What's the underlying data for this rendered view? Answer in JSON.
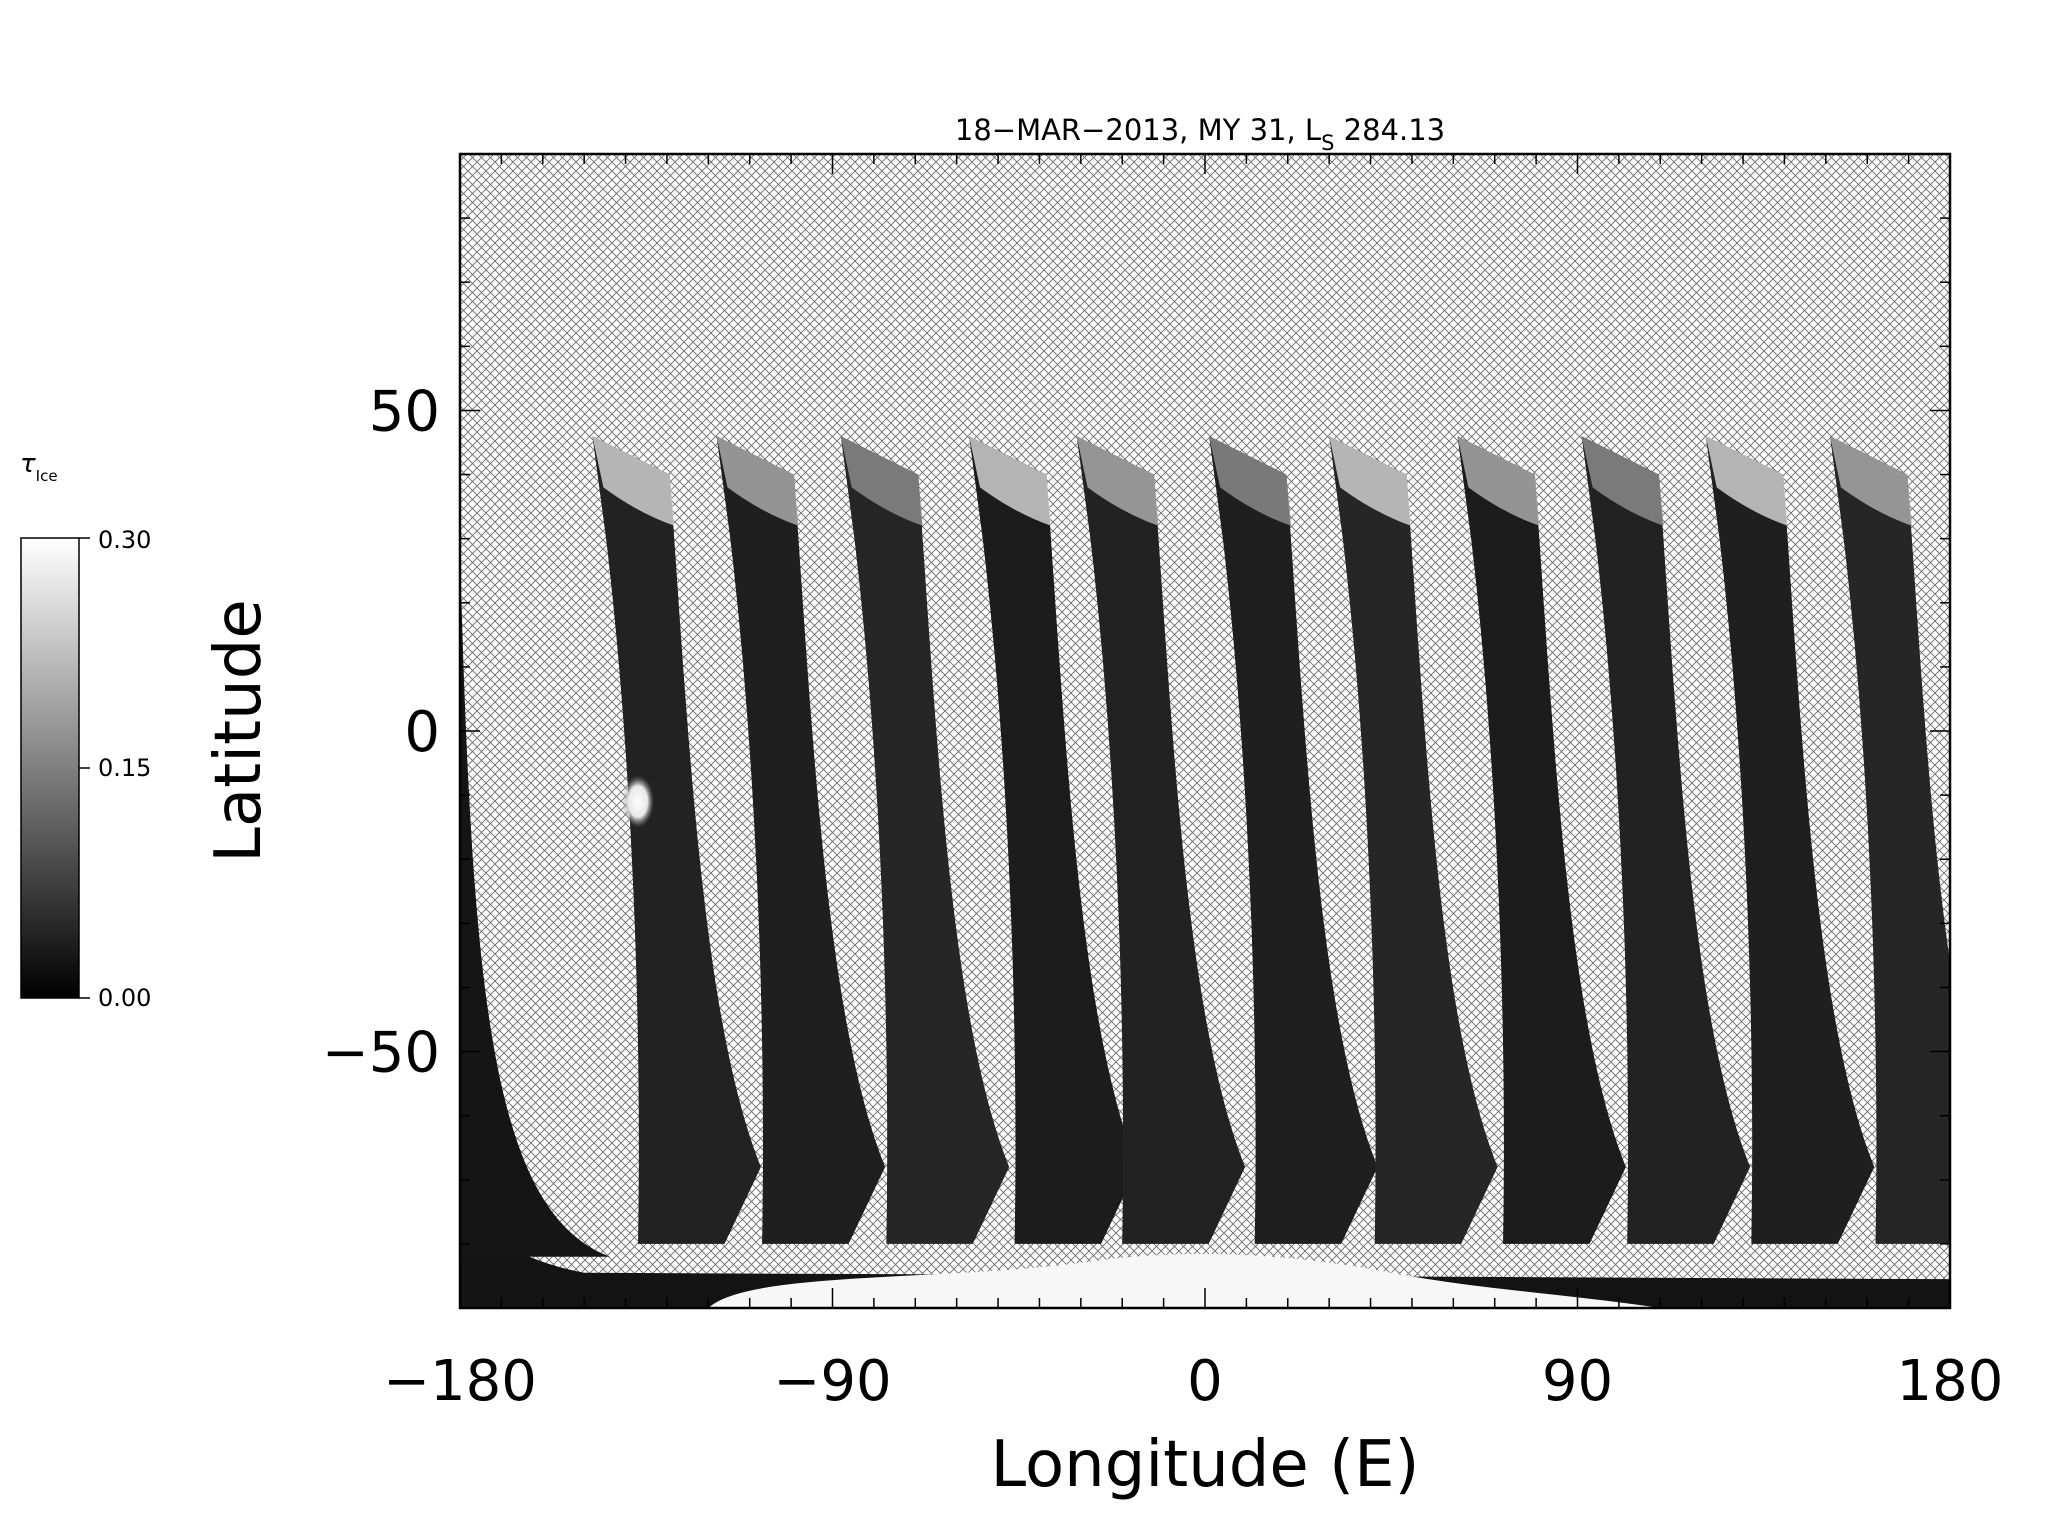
{
  "chart_data": {
    "type": "heatmap",
    "title_prefix": "18−MAR−2013, MY 31,  L",
    "title_subscript": "S",
    "title_suffix": " 284.13",
    "xlabel": "Longitude (E)",
    "ylabel": "Latitude",
    "xlim": [
      -180,
      180
    ],
    "ylim": [
      -90,
      90
    ],
    "x_ticks": [
      {
        "value": -180,
        "label": "−180"
      },
      {
        "value": -90,
        "label": "−90"
      },
      {
        "value": 0,
        "label": "0"
      },
      {
        "value": 90,
        "label": "90"
      },
      {
        "value": 180,
        "label": "180"
      }
    ],
    "y_ticks": [
      {
        "value": 50,
        "label": "50"
      },
      {
        "value": 0,
        "label": "0"
      },
      {
        "value": -50,
        "label": "−50"
      }
    ],
    "no_data_fill": "crosshatch",
    "grid": false,
    "colorbar": {
      "label": "τ",
      "label_subscript": "Ice",
      "min": 0.0,
      "max": 0.3,
      "tick_labels": [
        {
          "value": 0.3,
          "label": "0.30"
        },
        {
          "value": 0.15,
          "label": "0.15"
        },
        {
          "value": 0.0,
          "label": "0.00"
        }
      ],
      "colormap": "grayscale",
      "colors": {
        "low": "#000000",
        "high": "#ffffff"
      }
    },
    "swaths": [
      {
        "lon_start": -180
      },
      {
        "lon_start": -148
      },
      {
        "lon_start": -118
      },
      {
        "lon_start": -88
      },
      {
        "lon_start": -57
      },
      {
        "lon_start": -31
      },
      {
        "lon_start": 1
      },
      {
        "lon_start": 30
      },
      {
        "lon_start": 61
      },
      {
        "lon_start": 91
      },
      {
        "lon_start": 121
      },
      {
        "lon_start": 151
      }
    ],
    "bright_spot": {
      "lon": -137,
      "lat": -11,
      "value": 0.28
    }
  }
}
